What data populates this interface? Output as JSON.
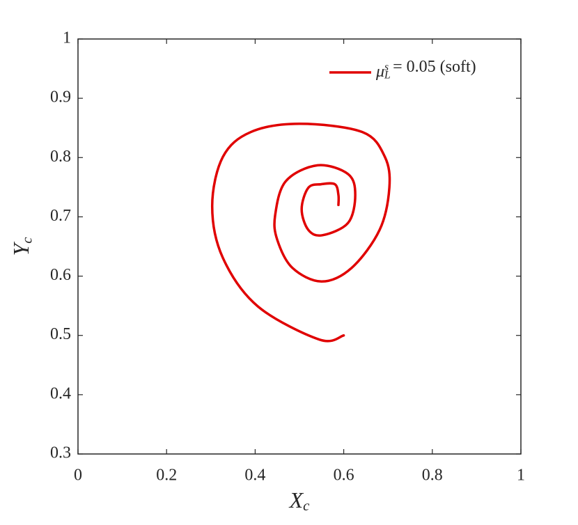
{
  "chart_data": {
    "type": "line",
    "xlabel": "X_c",
    "ylabel": "Y_c",
    "xlim": [
      0,
      1
    ],
    "ylim": [
      0.3,
      1
    ],
    "xticks": [
      0,
      0.2,
      0.4,
      0.6,
      0.8,
      1
    ],
    "yticks": [
      0.3,
      0.4,
      0.5,
      0.6,
      0.7,
      0.8,
      0.9,
      1
    ],
    "legend": "upper right",
    "grid": false,
    "series": [
      {
        "name": "μ_L^s = 0.05 (soft)",
        "color": "#e00000",
        "x": [
          0.6,
          0.545,
          0.406,
          0.327,
          0.303,
          0.327,
          0.39,
          0.5,
          0.642,
          0.693,
          0.703,
          0.681,
          0.618,
          0.55,
          0.484,
          0.45,
          0.445,
          0.469,
          0.541,
          0.61,
          0.626,
          0.61,
          0.552,
          0.52,
          0.505,
          0.52,
          0.549,
          0.58,
          0.588,
          0.588
        ],
        "values": [
          0.5,
          0.493,
          0.549,
          0.631,
          0.718,
          0.801,
          0.843,
          0.857,
          0.843,
          0.801,
          0.749,
          0.678,
          0.614,
          0.591,
          0.614,
          0.661,
          0.702,
          0.76,
          0.787,
          0.772,
          0.737,
          0.69,
          0.669,
          0.678,
          0.713,
          0.749,
          0.755,
          0.755,
          0.737,
          0.72
        ]
      }
    ]
  }
}
